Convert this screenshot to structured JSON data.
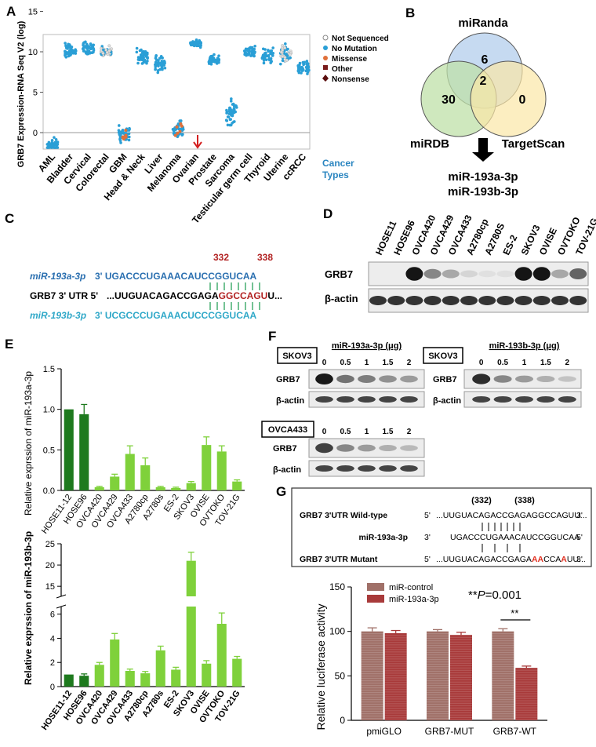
{
  "panel_labels": {
    "A": "A",
    "B": "B",
    "C": "C",
    "D": "D",
    "E": "E",
    "F": "F",
    "G": "G"
  },
  "panelA": {
    "ylabel": "GRB7 Expression-RNA Seq V2 (log)",
    "yticks": [
      "0",
      "5",
      "10",
      "15"
    ],
    "cancer_types": [
      "AML",
      "Bladder",
      "Cervical",
      "Colorectal",
      "GBM",
      "Head & Neck",
      "Liver",
      "Melanoma",
      "Ovarian",
      "Prostate",
      "Sarcoma",
      "Testicular germ cell",
      "Thyroid",
      "Uterine",
      "ccRCC"
    ],
    "x_title_line1": "Cancer",
    "x_title_line2": "Types",
    "legend": [
      {
        "label": "Not Sequenced",
        "color": "#ffffff"
      },
      {
        "label": "No Mutation",
        "color": "#2a9fd6"
      },
      {
        "label": "Missense",
        "color": "#e0703a"
      },
      {
        "label": "Other",
        "color": "#7a1c1c"
      },
      {
        "label": "Nonsense",
        "color": "#5a0f0f"
      }
    ]
  },
  "panelB": {
    "sets": [
      "miRanda",
      "miRDB",
      "TargetScan"
    ],
    "counts": {
      "miRanda_only": "6",
      "miRDB_only": "30",
      "TargetScan_only": "0",
      "all_three": "2"
    },
    "result_line1": "miR-193a-3p",
    "result_line2": "miR-193b-3p"
  },
  "panelC": {
    "pos1": "332",
    "pos2": "338",
    "mir_a_name": "miR-193a-3p",
    "mir_a_seq": "3'   UGACCCUGAAACAUCCGGUCAA",
    "utr_label": "GRB7 3' UTR 5'",
    "utr_seq_pre": "...UUGUACAGACCGAGA",
    "utr_seq_site": "GGCCAGU",
    "utr_seq_post": "U...",
    "mir_b_name": "miR-193b-3p",
    "mir_b_seq": "3'   UCGCCCUGAAACUCCCGGUCAA"
  },
  "panelD": {
    "lanes": [
      "HOSE11",
      "HOSE96",
      "OVCA420",
      "OVCA429",
      "OVCA433",
      "A2780cp",
      "A2780S",
      "ES-2",
      "SKOV3",
      "OVISE",
      "OVTOKO",
      "TOV-21G"
    ],
    "grb7_intensity": [
      0.0,
      0.0,
      0.95,
      0.45,
      0.3,
      0.1,
      0.05,
      0.05,
      0.95,
      0.95,
      0.3,
      0.6
    ],
    "row1": "GRB7",
    "row2": "β-actin"
  },
  "panelE1": {
    "ylabel": "Relative exprssion of miR-193a-3p",
    "categories": [
      "HOSE11-12",
      "HOSE96",
      "OVCA420",
      "OVCA429",
      "OVCA433",
      "A2780cp",
      "A2780s",
      "ES-2",
      "SKOV3",
      "OVISE",
      "OVTOKO",
      "TOV-21G"
    ],
    "yticks": [
      "0.0",
      "0.5",
      "1.0",
      "1.5"
    ]
  },
  "panelE2": {
    "ylabel": "Relative exprssion of miR-193b-3p",
    "categories": [
      "HOSE11-12",
      "HOSE96",
      "OVCA420",
      "OVCA429",
      "OVCA433",
      "A2780cp",
      "A2780s",
      "ES-2",
      "SKOV3",
      "OVISE",
      "OVTOKO",
      "TOV-21G"
    ],
    "yticks_low": [
      "0",
      "2",
      "4",
      "6"
    ],
    "yticks_high": [
      "15",
      "20",
      "25"
    ]
  },
  "panelF": {
    "blots": [
      {
        "cell": "SKOV3",
        "title": "miR-193a-3p (μg)",
        "doses": [
          "0",
          "0.5",
          "1",
          "1.5",
          "2"
        ],
        "grb7": [
          1.0,
          0.55,
          0.5,
          0.4,
          0.35
        ]
      },
      {
        "cell": "SKOV3",
        "title": "miR-193b-3p (μg)",
        "doses": [
          "0",
          "0.5",
          "1",
          "1.5",
          "2"
        ],
        "grb7": [
          0.9,
          0.45,
          0.35,
          0.25,
          0.15
        ]
      },
      {
        "cell": "OVCA433",
        "title": "",
        "doses": [
          "0",
          "0.5",
          "1",
          "1.5",
          "2"
        ],
        "grb7": [
          0.8,
          0.45,
          0.35,
          0.25,
          0.2
        ]
      }
    ],
    "row1": "GRB7",
    "row2": "β-actin"
  },
  "panelG": {
    "pos1": "(332)",
    "pos2": "(338)",
    "wt_label": "GRB7 3'UTR Wild-type",
    "wt_5": "5'",
    "wt_seq": "...UUGUACAGACCGAGAGGCCAGUU...",
    "wt_3": "3'",
    "mir_label": "miR-193a-3p",
    "mir_3": "3'",
    "mir_seq": "UGACCCUGAAACAUCCGGUCAA",
    "mir_5": "5'",
    "mut_label": "GRB7 3'UTR Mutant",
    "mut_5": "5'",
    "mut_seq_a": "...UUGUACAGACCGAGA",
    "mut_seq_b": "AA",
    "mut_seq_c": "CCA",
    "mut_seq_d": "A",
    "mut_seq_e": "UU...",
    "mut_3": "3'",
    "chart_title_prefix": "**",
    "chart_title_p": "P",
    "chart_title_val": "=0.001",
    "sig_mark": "**",
    "legend": [
      "miR-control",
      "miR-193a-3p"
    ]
  },
  "chart_data": [
    {
      "type": "bar",
      "title": "",
      "ylabel": "Relative exprssion of miR-193a-3p",
      "categories": [
        "HOSE11-12",
        "HOSE96",
        "OVCA420",
        "OVCA429",
        "OVCA433",
        "A2780cp",
        "A2780s",
        "ES-2",
        "SKOV3",
        "OVISE",
        "OVTOKO",
        "TOV-21G"
      ],
      "values": [
        1.0,
        0.94,
        0.04,
        0.17,
        0.45,
        0.31,
        0.04,
        0.03,
        0.09,
        0.56,
        0.48,
        0.11
      ],
      "errors": [
        0.0,
        0.12,
        0.01,
        0.03,
        0.1,
        0.09,
        0.01,
        0.01,
        0.02,
        0.1,
        0.07,
        0.02
      ],
      "ylim": [
        0,
        1.5
      ],
      "colors": [
        "#1e7a1e",
        "#1e7a1e",
        "#7fd13b",
        "#7fd13b",
        "#7fd13b",
        "#7fd13b",
        "#7fd13b",
        "#7fd13b",
        "#7fd13b",
        "#7fd13b",
        "#7fd13b",
        "#7fd13b"
      ]
    },
    {
      "type": "bar",
      "title": "",
      "ylabel": "Relative exprssion of miR-193b-3p",
      "categories": [
        "HOSE11-12",
        "HOSE96",
        "OVCA420",
        "OVCA429",
        "OVCA433",
        "A2780cp",
        "A2780s",
        "ES-2",
        "SKOV3",
        "OVISE",
        "OVTOKO",
        "TOV-21G"
      ],
      "values": [
        1.0,
        0.9,
        1.8,
        3.9,
        1.3,
        1.1,
        3.0,
        1.4,
        21.0,
        1.9,
        5.2,
        2.3
      ],
      "errors": [
        0.0,
        0.15,
        0.2,
        0.5,
        0.15,
        0.15,
        0.35,
        0.2,
        2.0,
        0.25,
        0.9,
        0.2
      ],
      "ylim": [
        0,
        25
      ],
      "axis_break": [
        6.5,
        13
      ]
    },
    {
      "type": "bar",
      "title": "**P=0.001",
      "ylabel": "Relative luciferase activity",
      "categories": [
        "pmiGLO",
        "GRB7-MUT",
        "GRB7-WT"
      ],
      "series": [
        {
          "name": "miR-control",
          "values": [
            100,
            100,
            100
          ],
          "errors": [
            4,
            2,
            3
          ],
          "color": "#a07068"
        },
        {
          "name": "miR-193a-3p",
          "values": [
            98,
            96,
            59
          ],
          "errors": [
            3,
            3,
            2
          ],
          "color": "#a83a3a"
        }
      ],
      "yticks": [
        0,
        50,
        100,
        150
      ],
      "ylim": [
        0,
        150
      ]
    }
  ]
}
